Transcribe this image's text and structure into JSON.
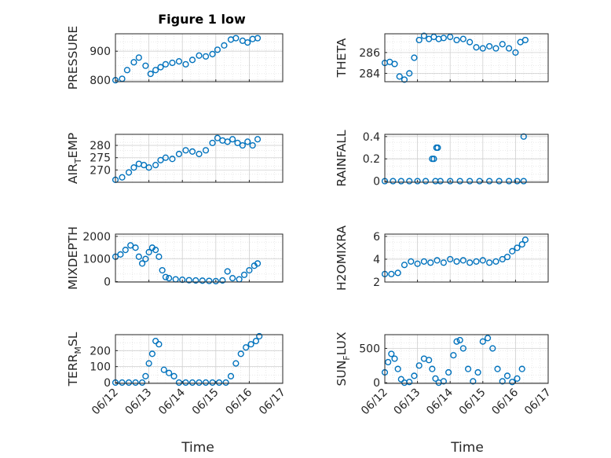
{
  "figure": {
    "title": "Figure 1 low",
    "xlabel": "Time",
    "xticks": [
      "06/12",
      "06/13",
      "06/14",
      "06/15",
      "06/16",
      "06/17"
    ],
    "marker_color": "#0072BD"
  },
  "chart_data": [
    {
      "type": "scatter",
      "ylabel_parts": [
        {
          "t": "PRESSURE"
        }
      ],
      "ylim": [
        795,
        960
      ],
      "yticks": [
        800,
        900
      ],
      "xlim": [
        0,
        5
      ],
      "grid": true,
      "x": [
        0.0,
        0.2,
        0.35,
        0.55,
        0.7,
        0.9,
        1.05,
        1.2,
        1.35,
        1.5,
        1.7,
        1.9,
        2.1,
        2.3,
        2.5,
        2.7,
        2.9,
        3.05,
        3.25,
        3.45,
        3.6,
        3.8,
        3.95,
        4.1,
        4.25
      ],
      "y": [
        800,
        805,
        835,
        862,
        878,
        850,
        822,
        835,
        845,
        855,
        860,
        865,
        855,
        870,
        885,
        882,
        890,
        905,
        920,
        940,
        945,
        936,
        930,
        942,
        945
      ]
    },
    {
      "type": "scatter",
      "ylabel_parts": [
        {
          "t": "THETA"
        }
      ],
      "ylim": [
        283.2,
        287.8
      ],
      "yticks": [
        284,
        286
      ],
      "xlim": [
        0,
        5
      ],
      "grid": true,
      "x": [
        0.0,
        0.15,
        0.3,
        0.45,
        0.6,
        0.75,
        0.9,
        1.05,
        1.2,
        1.35,
        1.5,
        1.65,
        1.8,
        2.0,
        2.2,
        2.4,
        2.6,
        2.8,
        3.0,
        3.2,
        3.4,
        3.6,
        3.8,
        4.0,
        4.15,
        4.3
      ],
      "y": [
        285.0,
        285.1,
        284.9,
        283.7,
        283.4,
        284.0,
        285.5,
        287.2,
        287.6,
        287.3,
        287.5,
        287.3,
        287.4,
        287.5,
        287.2,
        287.3,
        287.0,
        286.5,
        286.4,
        286.6,
        286.4,
        286.8,
        286.4,
        286.0,
        287.0,
        287.2
      ]
    },
    {
      "type": "scatter",
      "ylabel_parts": [
        {
          "t": "AIR"
        },
        {
          "t": "T",
          "sub": true
        },
        {
          "t": "EMP"
        }
      ],
      "ylim": [
        265,
        284.5
      ],
      "yticks": [
        270,
        275,
        280
      ],
      "xlim": [
        0,
        5
      ],
      "grid": true,
      "x": [
        0.0,
        0.2,
        0.4,
        0.55,
        0.7,
        0.85,
        1.0,
        1.2,
        1.35,
        1.5,
        1.7,
        1.9,
        2.1,
        2.3,
        2.5,
        2.7,
        2.9,
        3.05,
        3.2,
        3.35,
        3.5,
        3.65,
        3.8,
        3.95,
        4.1,
        4.25
      ],
      "y": [
        266,
        267,
        269,
        271,
        272.5,
        272.0,
        271.0,
        272.0,
        274.0,
        275.0,
        274.5,
        276.5,
        278.0,
        277.5,
        276.5,
        278.0,
        281.0,
        283.0,
        282.0,
        281.5,
        282.5,
        281.0,
        280.0,
        281.5,
        280.0,
        282.5
      ]
    },
    {
      "type": "scatter",
      "ylabel_parts": [
        {
          "t": "RAINFALL"
        }
      ],
      "ylim": [
        -0.01,
        0.42
      ],
      "yticks": [
        0,
        0.2,
        0.4
      ],
      "xlim": [
        0,
        5
      ],
      "grid": true,
      "x": [
        0.0,
        0.25,
        0.5,
        0.75,
        1.0,
        1.25,
        1.45,
        1.5,
        1.55,
        1.58,
        1.62,
        1.7,
        2.0,
        2.3,
        2.6,
        2.9,
        3.2,
        3.5,
        3.8,
        4.05,
        4.25,
        4.25
      ],
      "y": [
        0,
        0,
        0,
        0,
        0,
        0,
        0.2,
        0.2,
        0,
        0.3,
        0.3,
        0,
        0,
        0,
        0,
        0,
        0,
        0,
        0,
        0,
        0,
        0.4
      ]
    },
    {
      "type": "scatter",
      "ylabel_parts": [
        {
          "t": "MIXDEPTH"
        }
      ],
      "ylim": [
        -20,
        2100
      ],
      "yticks": [
        0,
        1000,
        2000
      ],
      "xlim": [
        0,
        5
      ],
      "grid": true,
      "x": [
        0.0,
        0.15,
        0.3,
        0.45,
        0.6,
        0.7,
        0.8,
        0.9,
        1.0,
        1.1,
        1.2,
        1.3,
        1.4,
        1.5,
        1.6,
        1.8,
        2.0,
        2.2,
        2.4,
        2.6,
        2.8,
        3.0,
        3.2,
        3.35,
        3.5,
        3.7,
        3.85,
        4.0,
        4.15,
        4.25
      ],
      "y": [
        1100,
        1200,
        1400,
        1600,
        1500,
        1100,
        800,
        1000,
        1300,
        1500,
        1400,
        1100,
        500,
        200,
        150,
        100,
        80,
        60,
        50,
        40,
        30,
        20,
        50,
        450,
        150,
        100,
        300,
        500,
        700,
        800
      ]
    },
    {
      "type": "scatter",
      "ylabel_parts": [
        {
          "t": "H2OMIXRA"
        }
      ],
      "ylim": [
        2.0,
        6.2
      ],
      "yticks": [
        2,
        4,
        6
      ],
      "xlim": [
        0,
        5
      ],
      "grid": true,
      "x": [
        0.0,
        0.2,
        0.4,
        0.6,
        0.8,
        1.0,
        1.2,
        1.4,
        1.6,
        1.8,
        2.0,
        2.2,
        2.4,
        2.6,
        2.8,
        3.0,
        3.2,
        3.4,
        3.6,
        3.75,
        3.9,
        4.05,
        4.2,
        4.3
      ],
      "y": [
        2.7,
        2.7,
        2.8,
        3.5,
        3.8,
        3.6,
        3.8,
        3.7,
        3.9,
        3.7,
        4.0,
        3.8,
        3.9,
        3.7,
        3.8,
        3.9,
        3.7,
        3.8,
        4.0,
        4.2,
        4.7,
        5.0,
        5.3,
        5.7
      ]
    },
    {
      "type": "scatter",
      "ylabel_parts": [
        {
          "t": "TERR"
        },
        {
          "t": "M",
          "sub": true
        },
        {
          "t": "SL"
        }
      ],
      "ylim": [
        -5,
        300
      ],
      "yticks": [
        0,
        100,
        200
      ],
      "xlim": [
        0,
        5
      ],
      "grid": true,
      "x": [
        0.0,
        0.2,
        0.4,
        0.6,
        0.8,
        0.9,
        1.0,
        1.1,
        1.2,
        1.3,
        1.45,
        1.6,
        1.75,
        1.9,
        2.1,
        2.3,
        2.5,
        2.7,
        2.9,
        3.1,
        3.3,
        3.45,
        3.6,
        3.75,
        3.9,
        4.05,
        4.2,
        4.3
      ],
      "y": [
        0,
        0,
        0,
        0,
        0,
        40,
        120,
        180,
        260,
        240,
        80,
        60,
        40,
        0,
        0,
        0,
        0,
        0,
        0,
        0,
        0,
        40,
        120,
        180,
        220,
        240,
        260,
        290
      ]
    },
    {
      "type": "scatter",
      "ylabel_parts": [
        {
          "t": "SUN"
        },
        {
          "t": "F",
          "sub": true
        },
        {
          "t": "LUX"
        }
      ],
      "ylim": [
        -10,
        700
      ],
      "yticks": [
        0,
        500
      ],
      "xlim": [
        0,
        5
      ],
      "grid": true,
      "x": [
        0.0,
        0.1,
        0.2,
        0.3,
        0.4,
        0.5,
        0.6,
        0.75,
        0.9,
        1.05,
        1.2,
        1.35,
        1.45,
        1.55,
        1.65,
        1.8,
        1.95,
        2.1,
        2.2,
        2.3,
        2.4,
        2.55,
        2.7,
        2.85,
        3.0,
        3.15,
        3.3,
        3.45,
        3.6,
        3.75,
        3.9,
        4.05,
        4.2
      ],
      "y": [
        150,
        300,
        420,
        350,
        200,
        50,
        0,
        10,
        100,
        250,
        350,
        330,
        200,
        60,
        0,
        20,
        150,
        400,
        600,
        620,
        500,
        200,
        20,
        150,
        600,
        650,
        500,
        200,
        20,
        100,
        10,
        60,
        200
      ]
    }
  ]
}
